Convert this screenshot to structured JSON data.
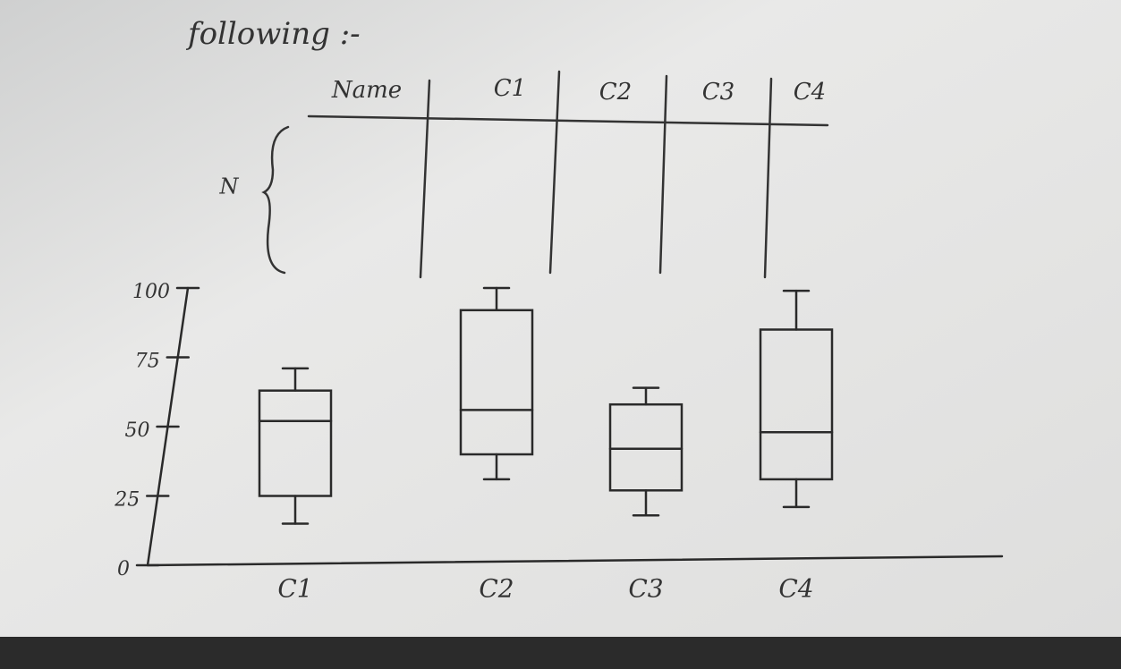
{
  "heading": "following :-",
  "table": {
    "header": [
      "Name",
      "C1",
      "C2",
      "C3",
      "C4"
    ],
    "row_label": "N"
  },
  "chart_data": {
    "type": "box",
    "categories": [
      "C1",
      "C2",
      "C3",
      "C4"
    ],
    "min": [
      15,
      31,
      18,
      21
    ],
    "q1": [
      25,
      40,
      27,
      31
    ],
    "median": [
      52,
      56,
      42,
      48
    ],
    "q3": [
      63,
      92,
      58,
      85
    ],
    "max": [
      71,
      100,
      64,
      99
    ],
    "ylim": [
      0,
      100
    ],
    "yticks": [
      0,
      25,
      50,
      75,
      100
    ],
    "color": "#2a2a2a"
  }
}
